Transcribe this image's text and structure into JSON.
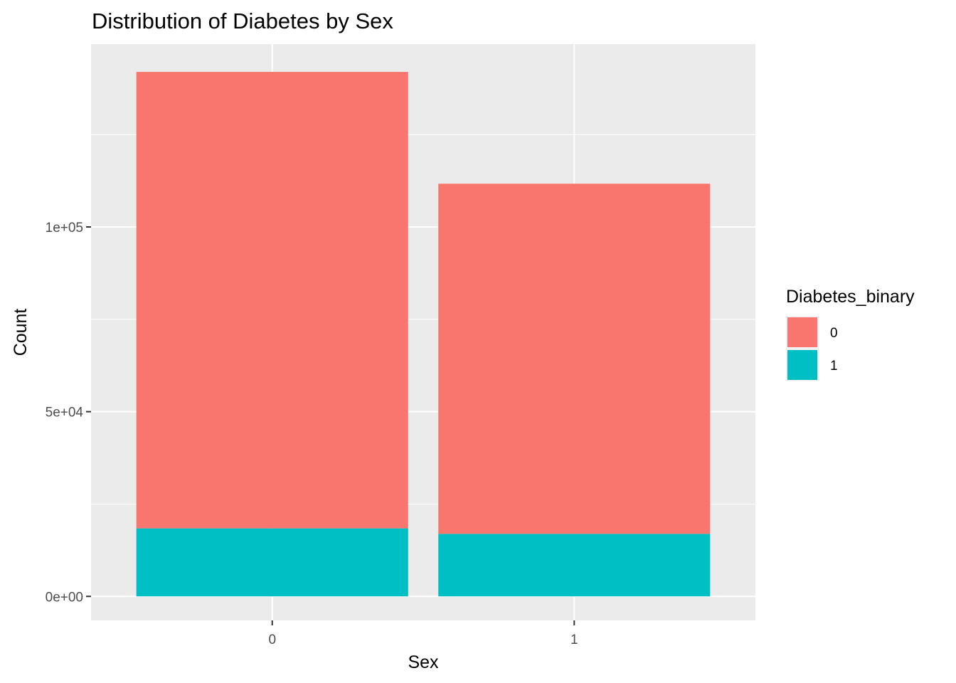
{
  "chart_data": {
    "type": "bar",
    "stacked": true,
    "title": "Distribution of Diabetes by Sex",
    "xlabel": "Sex",
    "ylabel": "Count",
    "categories": [
      "0",
      "1"
    ],
    "series": [
      {
        "name": "0",
        "values": [
          123563,
          94771
        ],
        "color": "#F8766D"
      },
      {
        "name": "1",
        "values": [
          18411,
          16935
        ],
        "color": "#00BFC4"
      }
    ],
    "ylim": [
      -6500,
      149500
    ],
    "yticks": [
      0,
      50000,
      100000
    ],
    "ytick_labels": [
      "0e+00",
      "5e+04",
      "1e+05"
    ],
    "yminor": [
      25000,
      75000,
      125000
    ],
    "legend": {
      "title": "Diabetes_binary",
      "entries": [
        "0",
        "1"
      ],
      "placement": "right"
    },
    "grid": true,
    "panel_background": "#EBEBEB",
    "grid_color": "#FFFFFF"
  }
}
